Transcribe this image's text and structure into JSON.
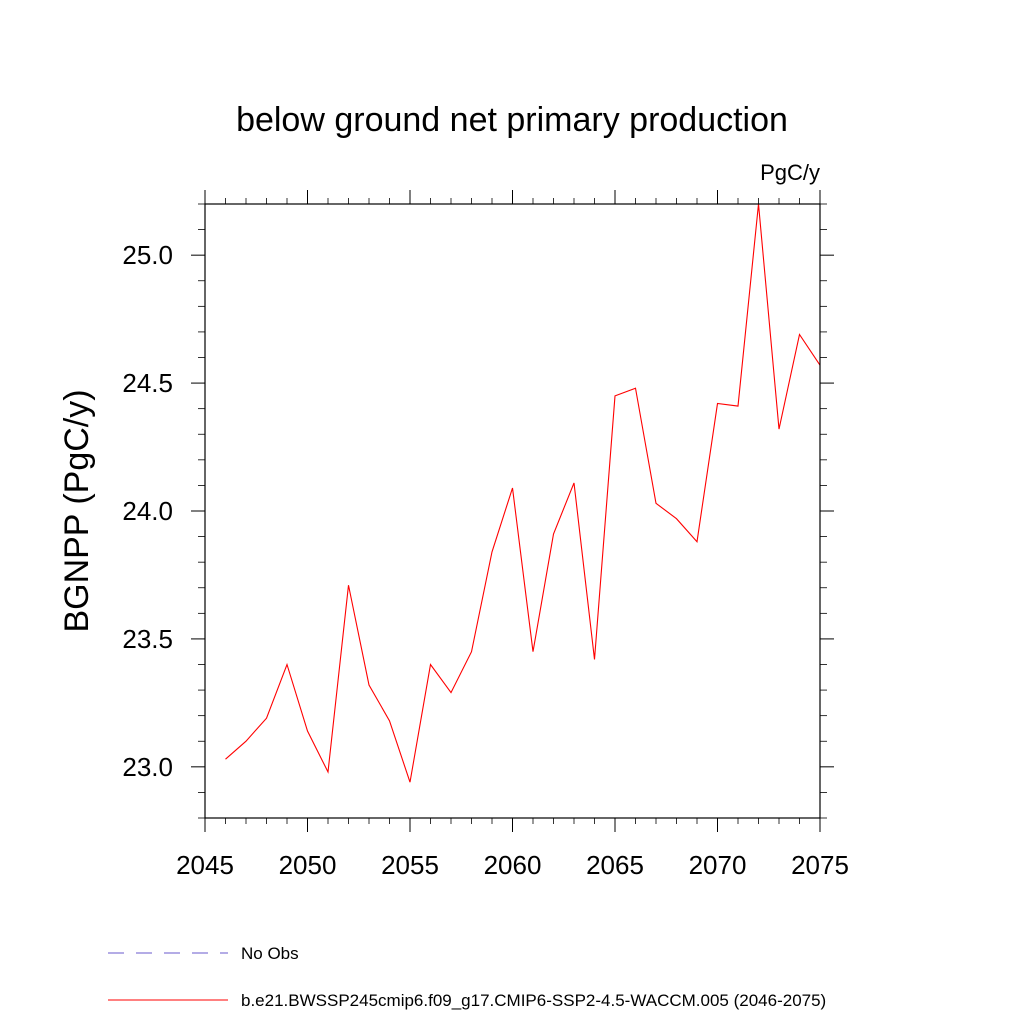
{
  "chart_data": {
    "type": "line",
    "title": "below ground net primary production",
    "units_label": "PgC/y",
    "ylabel": "BGNPP  (PgC/y)",
    "xlabel": "",
    "xlim": [
      2045,
      2075
    ],
    "ylim": [
      22.8,
      25.2
    ],
    "x_ticks": [
      2045,
      2050,
      2055,
      2060,
      2065,
      2070,
      2075
    ],
    "x_tick_labels": [
      "2045",
      "2050",
      "2055",
      "2060",
      "2065",
      "2070",
      "2075"
    ],
    "y_ticks": [
      23.0,
      23.5,
      24.0,
      24.5,
      25.0
    ],
    "y_tick_labels": [
      "23.0",
      "23.5",
      "24.0",
      "24.5",
      "25.0"
    ],
    "grid": false,
    "legend_position": "bottom",
    "series": [
      {
        "name": "b.e21.BWSSP245cmip6.f09_g17.CMIP6-SSP2-4.5-WACCM.005 (2046-2075)",
        "color": "#ff0000",
        "style": "solid",
        "x": [
          2046,
          2047,
          2048,
          2049,
          2050,
          2051,
          2052,
          2053,
          2054,
          2055,
          2056,
          2057,
          2058,
          2059,
          2060,
          2061,
          2062,
          2063,
          2064,
          2065,
          2066,
          2067,
          2068,
          2069,
          2070,
          2071,
          2072,
          2073,
          2074,
          2075
        ],
        "values": [
          23.03,
          23.1,
          23.19,
          23.4,
          23.14,
          22.98,
          23.71,
          23.32,
          23.18,
          22.94,
          23.4,
          23.29,
          23.45,
          23.84,
          24.09,
          23.45,
          23.91,
          24.11,
          23.42,
          24.45,
          24.48,
          24.03,
          23.97,
          23.88,
          24.42,
          24.41,
          25.2,
          24.32,
          24.69,
          24.57
        ]
      }
    ],
    "legend": [
      {
        "label": "No Obs",
        "color": "#6a5acd",
        "style": "dashed"
      },
      {
        "label": "b.e21.BWSSP245cmip6.f09_g17.CMIP6-SSP2-4.5-WACCM.005 (2046-2075)",
        "color": "#ff0000",
        "style": "solid"
      }
    ]
  }
}
